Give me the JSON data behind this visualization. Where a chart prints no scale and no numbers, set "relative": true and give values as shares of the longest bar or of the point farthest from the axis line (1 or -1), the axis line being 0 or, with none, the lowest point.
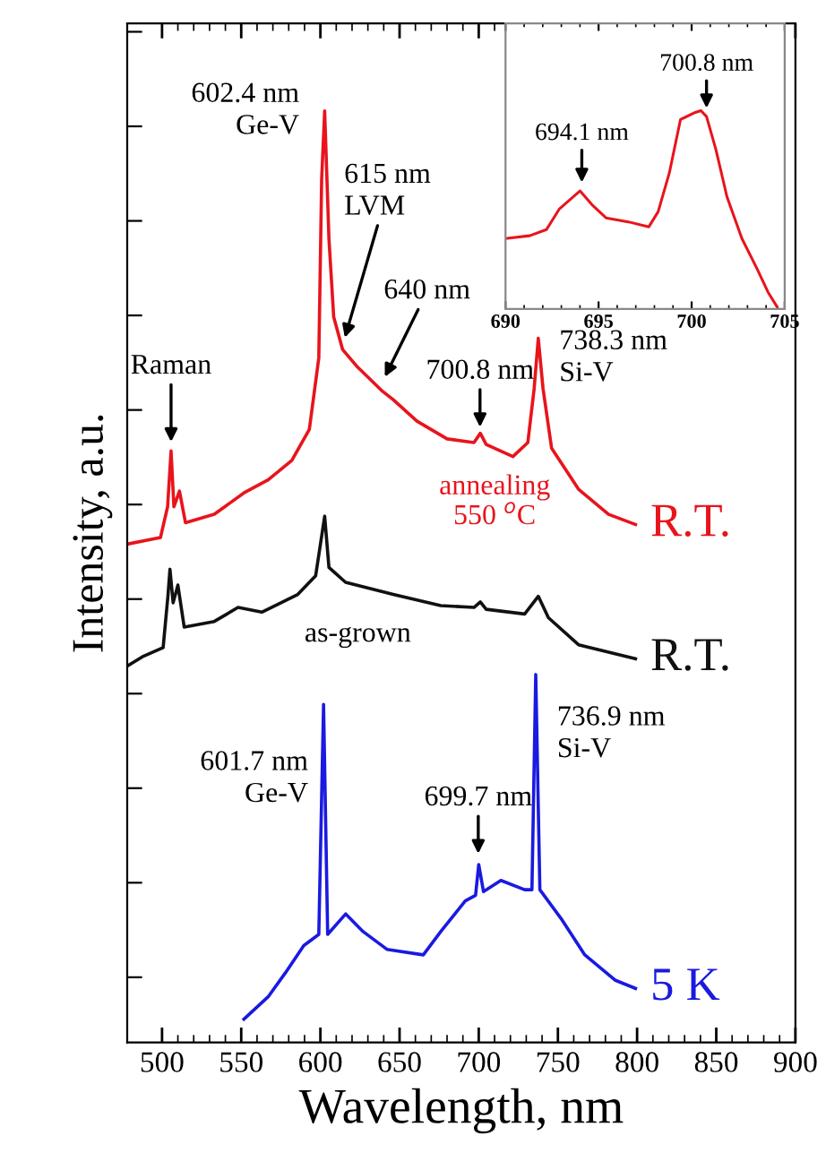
{
  "chart_data": [
    {
      "type": "line",
      "xlabel": "Wavelength, nm",
      "ylabel": "Intensity, a.u.",
      "relative": true,
      "xlim": [
        478,
        900
      ],
      "xticks": [
        500,
        550,
        600,
        650,
        700,
        750,
        800,
        850,
        900
      ],
      "grid": false,
      "legend": false,
      "marker": "none",
      "line_style": "solid",
      "series": [
        {
          "name": "R.T.",
          "color": "#e8141c",
          "x": [
            478,
            499,
            503.5,
            505.7,
            507.5,
            511,
            514.8,
            533,
            551.7,
            567,
            582,
            593,
            599,
            600.8,
            602.7,
            605.4,
            608.4,
            614,
            623.5,
            638.6,
            646,
            661,
            680,
            697,
            701,
            704.7,
            721.6,
            731,
            735,
            737.6,
            740.6,
            746,
            763,
            782,
            799
          ],
          "values": [
            0.535,
            0.542,
            0.575,
            0.635,
            0.575,
            0.592,
            0.558,
            0.567,
            0.59,
            0.604,
            0.625,
            0.658,
            0.735,
            0.927,
            1.0,
            0.863,
            0.779,
            0.744,
            0.725,
            0.7,
            0.69,
            0.667,
            0.648,
            0.644,
            0.654,
            0.642,
            0.629,
            0.644,
            0.702,
            0.756,
            0.702,
            0.638,
            0.594,
            0.567,
            0.556
          ]
        },
        {
          "name": "R.T.",
          "color": "#111111",
          "x": [
            478,
            487.5,
            500.7,
            503.7,
            505,
            507,
            510,
            514,
            533,
            548,
            563,
            585.7,
            597,
            602.7,
            605.4,
            615.9,
            646,
            676,
            697,
            701,
            704.7,
            729,
            737.6,
            744,
            763,
            799
          ],
          "values": [
            0.404,
            0.414,
            0.424,
            0.479,
            0.508,
            0.472,
            0.491,
            0.446,
            0.452,
            0.467,
            0.462,
            0.481,
            0.501,
            0.565,
            0.51,
            0.494,
            0.481,
            0.469,
            0.467,
            0.473,
            0.465,
            0.46,
            0.479,
            0.456,
            0.427,
            0.412
          ]
        },
        {
          "name": "5 K",
          "color": "#1a1ae0",
          "x": [
            551.7,
            567,
            578,
            589.5,
            599,
            602,
            604.6,
            616,
            627,
            642,
            665,
            676,
            691.5,
            698,
            700,
            703,
            714,
            729,
            733.6,
            736,
            738.6,
            752,
            767,
            786,
            799
          ],
          "values": [
            0.025,
            0.049,
            0.075,
            0.104,
            0.116,
            0.363,
            0.116,
            0.138,
            0.119,
            0.1,
            0.094,
            0.119,
            0.152,
            0.158,
            0.191,
            0.162,
            0.174,
            0.164,
            0.164,
            0.395,
            0.164,
            0.133,
            0.094,
            0.067,
            0.058
          ]
        }
      ],
      "annotations": [
        {
          "text": "602.4 nm\nGe-V",
          "x": 602.4,
          "y": 1.0
        },
        {
          "text": "615 nm\nLVM",
          "x": 615,
          "y": 0.754
        },
        {
          "text": "640 nm",
          "x": 640,
          "y": 0.712
        },
        {
          "text": "700.8 nm",
          "x": 700.8,
          "y": 0.658
        },
        {
          "text": "738.3 nm\nSi-V",
          "x": 738.3,
          "y": 0.756
        },
        {
          "text": "Raman",
          "x": 505.7,
          "y": 0.642
        },
        "annealing\n550 $^{o}$C",
        "as-grown",
        {
          "text": "601.7 nm\nGe-V",
          "x": 601.7,
          "y": 0.363
        },
        {
          "text": "699.7 nm",
          "x": 699.7,
          "y": 0.2
        },
        {
          "text": "736.9 nm\nSi-V",
          "x": 736.9,
          "y": 0.395
        }
      ]
    },
    {
      "type": "line",
      "relative": true,
      "xlim": [
        690,
        705
      ],
      "xticks": [
        690,
        695,
        700,
        705
      ],
      "grid": false,
      "legend": false,
      "marker": "none",
      "line_style": "solid",
      "series": [
        {
          "color": "#e8141c",
          "x": [
            690,
            691.3,
            692.2,
            692.9,
            694.0,
            694.7,
            695.4,
            696.6,
            697.7,
            698.2,
            698.8,
            699.4,
            700.2,
            700.5,
            700.8,
            701.3,
            701.9,
            702.7,
            703.5,
            704.1,
            704.6
          ],
          "values": [
            0.355,
            0.369,
            0.4,
            0.505,
            0.595,
            0.52,
            0.459,
            0.439,
            0.414,
            0.49,
            0.685,
            0.955,
            0.991,
            1.0,
            0.97,
            0.805,
            0.565,
            0.355,
            0.205,
            0.085,
            0.009
          ]
        }
      ],
      "annotations": [
        {
          "text": "694.1 nm",
          "x": 694.1,
          "y": 0.625
        },
        {
          "text": "700.8 nm",
          "x": 700.8,
          "y": 1.0
        }
      ]
    }
  ]
}
